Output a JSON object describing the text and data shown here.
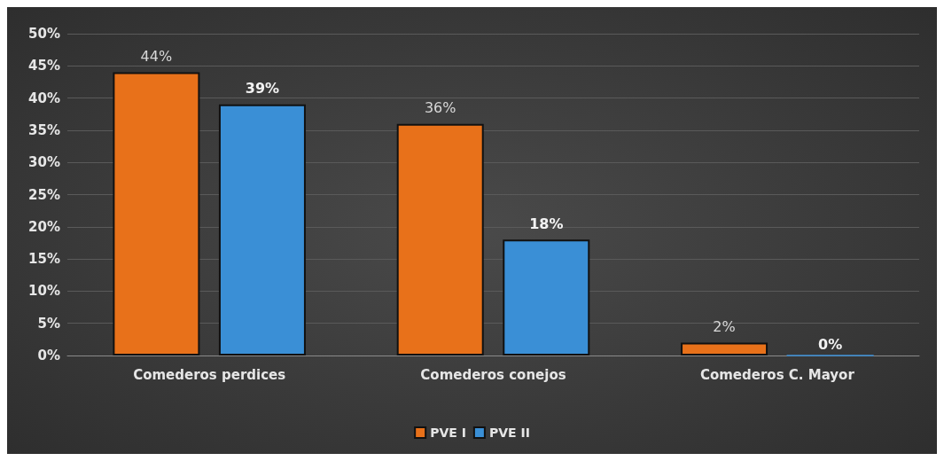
{
  "chart_data": {
    "type": "bar",
    "categories": [
      "Comederos perdices",
      "Comederos conejos",
      "Comederos C. Mayor"
    ],
    "series": [
      {
        "name": "PVE I",
        "color": "#e8711a",
        "values": [
          44,
          36,
          2
        ],
        "value_labels": [
          "44%",
          "36%",
          "2%"
        ]
      },
      {
        "name": "PVE II",
        "color": "#3a8fd6",
        "values": [
          39,
          18,
          0
        ],
        "value_labels": [
          "39%",
          "18%",
          "0%"
        ]
      }
    ],
    "ylim": [
      0,
      50
    ],
    "yticks": [
      {
        "value": 0,
        "label": "0%"
      },
      {
        "value": 5,
        "label": "5%"
      },
      {
        "value": 10,
        "label": "10%"
      },
      {
        "value": 15,
        "label": "15%"
      },
      {
        "value": 20,
        "label": "20%"
      },
      {
        "value": 25,
        "label": "25%"
      },
      {
        "value": 30,
        "label": "30%"
      },
      {
        "value": 35,
        "label": "35%"
      },
      {
        "value": 40,
        "label": "40%"
      },
      {
        "value": 45,
        "label": "45%"
      },
      {
        "value": 50,
        "label": "50%"
      }
    ],
    "grid": "y",
    "legend": "bottom"
  }
}
